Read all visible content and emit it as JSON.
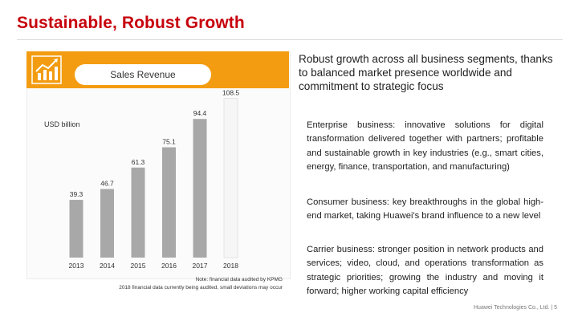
{
  "title": "Sustainable, Robust Growth",
  "chart_data": {
    "type": "bar",
    "title": "Sales Revenue",
    "ylabel": "USD billion",
    "categories": [
      "2013",
      "2014",
      "2015",
      "2016",
      "2017",
      "2018"
    ],
    "values": [
      39.3,
      46.7,
      61.3,
      75.1,
      94.4,
      108.5
    ],
    "data_labels": [
      "39.3",
      "46.7",
      "61.3",
      "75.1",
      "94.4",
      "108.5"
    ],
    "ylim": [
      0,
      112
    ],
    "colors": {
      "bar": "#a8a8a8",
      "bar_last": "#f6f6f6",
      "banner": "#f39c12"
    },
    "note_line1": "Note: financial data audited by KPMG",
    "note_line2": "2018 financial data currently being audited, small deviations may occur"
  },
  "icon": "growth-chart-icon",
  "summary": "Robust growth across all business segments, thanks to balanced market presence worldwide and commitment to strategic focus",
  "bullets": [
    "Enterprise business: innovative solutions for digital transformation delivered together with partners; profitable and sustainable growth in key industries (e.g., smart cities, energy, finance, transportation, and manufacturing)",
    "Consumer business: key breakthroughs in the global high-end market, taking Huawei's brand influence to a new level",
    "Carrier business: stronger position in network products and services; video, cloud, and operations transformation as strategic priorities; growing the industry and moving it forward; higher working capital efficiency"
  ],
  "footer": "Huawei Technologies Co., Ltd. | 5"
}
